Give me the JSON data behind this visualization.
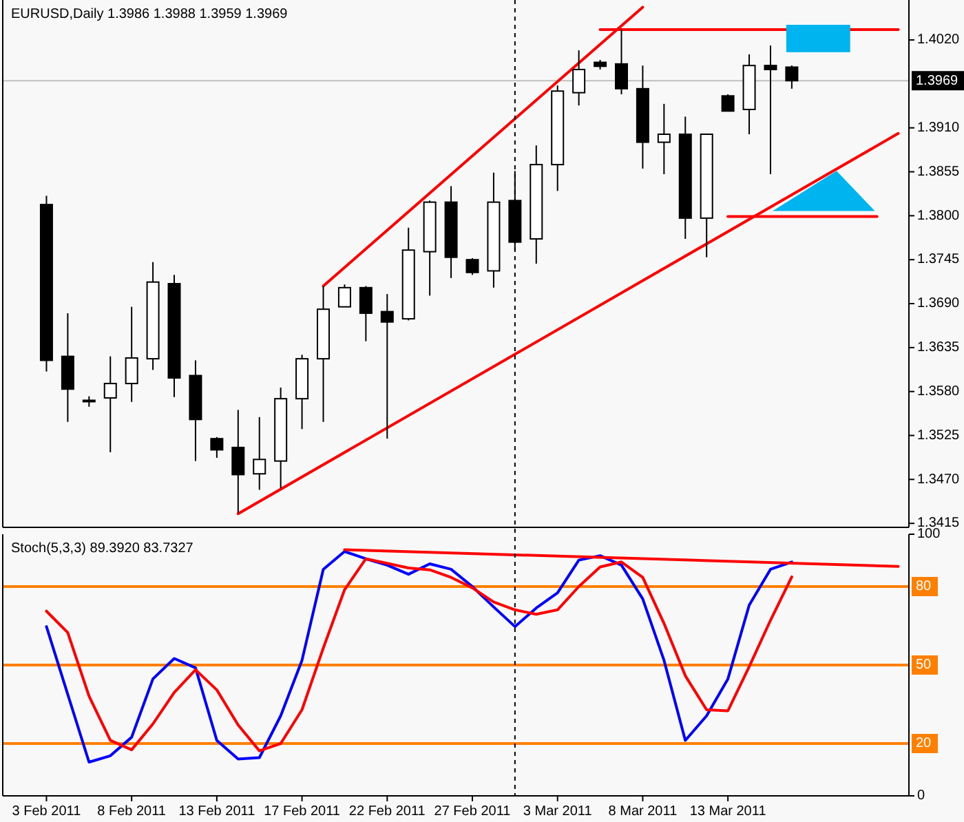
{
  "chart_data": [
    {
      "type": "candlestick",
      "title": "EURUSD,Daily  1.3986 1.3988 1.3959 1.3969",
      "tick_labels": "y",
      "categories": [
        null,
        null,
        null,
        null,
        null,
        null,
        null,
        null,
        null,
        null,
        null,
        null,
        null,
        null,
        null,
        null,
        null,
        null,
        null,
        null,
        null,
        null,
        null,
        null,
        null,
        null,
        null,
        null,
        null,
        null,
        null,
        null,
        null,
        null,
        null,
        null,
        null,
        null,
        null,
        null,
        null
      ],
      "ohlc": [
        [
          1.3814,
          1.3825,
          1.3605,
          1.3619
        ],
        [
          1.3624,
          1.3678,
          1.3542,
          1.3583
        ],
        [
          1.3569,
          1.3574,
          1.3561,
          1.3569
        ],
        [
          1.3572,
          1.3624,
          1.3504,
          1.359
        ],
        [
          1.359,
          1.3686,
          1.3567,
          1.3622
        ],
        [
          1.3621,
          1.3742,
          1.3607,
          1.3717
        ],
        [
          1.3715,
          1.3726,
          1.3573,
          1.3597
        ],
        [
          1.36,
          1.3619,
          1.3493,
          1.3545
        ],
        [
          1.3521,
          1.3523,
          1.3497,
          1.3507
        ],
        [
          1.351,
          1.3557,
          1.3428,
          1.3476
        ],
        [
          1.3477,
          1.3548,
          1.3457,
          1.3495
        ],
        [
          1.3493,
          1.3585,
          1.3459,
          1.3571
        ],
        [
          1.3571,
          1.3626,
          1.3533,
          1.3621
        ],
        [
          1.3621,
          1.3712,
          1.3542,
          1.3683
        ],
        [
          1.3686,
          1.3714,
          1.3686,
          1.371
        ],
        [
          1.371,
          1.3712,
          1.3643,
          1.3678
        ],
        [
          1.368,
          1.3702,
          1.3521,
          1.3667
        ],
        [
          1.3671,
          1.3785,
          1.3669,
          1.3757
        ],
        [
          1.3755,
          1.3819,
          1.37,
          1.3817
        ],
        [
          1.3817,
          1.3837,
          1.3722,
          1.3748
        ],
        [
          1.3745,
          1.3747,
          1.3726,
          1.3729
        ],
        [
          1.3731,
          1.3854,
          1.371,
          1.3817
        ],
        [
          1.3819,
          1.3856,
          1.3757,
          1.3767
        ],
        [
          1.3771,
          1.3888,
          1.374,
          1.3864
        ],
        [
          1.3864,
          1.3963,
          1.3831,
          1.3956
        ],
        [
          1.3954,
          1.4007,
          1.3938,
          1.3983
        ],
        [
          1.3992,
          1.3995,
          1.3983,
          1.3987
        ],
        [
          1.399,
          1.4033,
          1.3952,
          1.3959
        ],
        [
          1.3959,
          1.3988,
          1.3859,
          1.3892
        ],
        [
          1.3892,
          1.394,
          1.3852,
          1.3902
        ],
        [
          1.3902,
          1.3924,
          1.3771,
          1.3797
        ],
        [
          1.3797,
          1.3902,
          1.3748,
          1.3902
        ],
        [
          1.395,
          1.3952,
          1.3931,
          1.3931
        ],
        [
          1.3933,
          1.4002,
          1.3902,
          1.3988
        ],
        [
          1.3988,
          1.4013,
          1.3852,
          1.3983
        ],
        [
          1.3986,
          1.3988,
          1.3959,
          1.3969
        ],
        null,
        null,
        null,
        null,
        null
      ],
      "series": [
        {
          "type": "line",
          "color": "#ff0000",
          "values": [
            null,
            null,
            null,
            null,
            null,
            null,
            null,
            null,
            null,
            null,
            null,
            null,
            null,
            1.3712,
            null,
            null,
            null,
            null,
            null,
            null,
            null,
            null,
            null,
            null,
            null,
            null,
            null,
            null,
            1.4061,
            null,
            null,
            null,
            null,
            null,
            null,
            null,
            null,
            null,
            null,
            null,
            null
          ]
        },
        {
          "type": "line",
          "color": "#ff0000",
          "values": [
            null,
            null,
            null,
            null,
            null,
            null,
            null,
            null,
            null,
            1.3427,
            null,
            null,
            null,
            null,
            null,
            null,
            null,
            null,
            null,
            null,
            null,
            null,
            null,
            null,
            null,
            null,
            null,
            null,
            null,
            null,
            null,
            null,
            null,
            null,
            null,
            null,
            null,
            null,
            null,
            null,
            1.3903
          ]
        },
        {
          "type": "line",
          "color": "#ff0000",
          "values": [
            null,
            null,
            null,
            null,
            null,
            null,
            null,
            null,
            null,
            null,
            null,
            null,
            null,
            null,
            null,
            null,
            null,
            null,
            null,
            null,
            null,
            null,
            null,
            null,
            null,
            null,
            1.4033,
            null,
            null,
            null,
            null,
            null,
            null,
            null,
            null,
            null,
            null,
            null,
            null,
            null,
            1.4033
          ]
        },
        {
          "type": "line",
          "color": "#ff0000",
          "values": [
            null,
            null,
            null,
            null,
            null,
            null,
            null,
            null,
            null,
            null,
            null,
            null,
            null,
            null,
            null,
            null,
            null,
            null,
            null,
            null,
            null,
            null,
            null,
            null,
            null,
            null,
            null,
            null,
            null,
            null,
            null,
            null,
            1.3799,
            null,
            null,
            null,
            null,
            null,
            null,
            1.3799,
            null
          ]
        }
      ],
      "ylim": [
        1.341,
        1.407
      ],
      "yticks": [
        {
          "value": 1.3415,
          "label": "1.3415"
        },
        {
          "value": 1.347,
          "label": "1.3470"
        },
        {
          "value": 1.3525,
          "label": "1.3525"
        },
        {
          "value": 1.358,
          "label": "1.3580"
        },
        {
          "value": 1.3635,
          "label": "1.3635"
        },
        {
          "value": 1.369,
          "label": "1.3690"
        },
        {
          "value": 1.3745,
          "label": "1.3745"
        },
        {
          "value": 1.38,
          "label": "1.3800"
        },
        {
          "value": 1.3855,
          "label": "1.3855"
        },
        {
          "value": 1.391,
          "label": "1.3910"
        },
        {
          "value": 1.402,
          "label": "1.4020"
        }
      ],
      "ref_lines": [
        {
          "axis": "y",
          "value": 1.3969,
          "label": "1.3969",
          "color": "#c0c0c0"
        }
      ]
    },
    {
      "type": "line",
      "title": "Stoch(5,3,3) 89.3920 83.7327",
      "categories": [
        "3 Feb 2011",
        null,
        null,
        null,
        "8 Feb 2011",
        null,
        null,
        null,
        "13 Feb 2011",
        null,
        null,
        null,
        "17 Feb 2011",
        null,
        null,
        null,
        "22 Feb 2011",
        null,
        null,
        null,
        "27 Feb 2011",
        null,
        null,
        null,
        "3 Mar 2011",
        null,
        null,
        null,
        "8 Mar 2011",
        null,
        null,
        null,
        "13 Mar 2011",
        null,
        null,
        null,
        null,
        null,
        null,
        null,
        null
      ],
      "series": [
        {
          "color": "#0000ff",
          "values": [
            64.7,
            38.8,
            12.9,
            15.3,
            22.4,
            44.7,
            52.5,
            48.9,
            21.2,
            14.1,
            14.6,
            30.6,
            51.8,
            86.6,
            93.4,
            90.6,
            88.2,
            84.7,
            88.7,
            86.6,
            80,
            72.2,
            64.7,
            71.8,
            77.6,
            90.1,
            91.8,
            88.2,
            75.3,
            51.8,
            21.2,
            30.6,
            44.7,
            72.9,
            86.6,
            89.4,
            null,
            null,
            null,
            null,
            null
          ]
        },
        {
          "color": "#ff0000",
          "values": [
            70.6,
            62.4,
            38.1,
            21.2,
            17.6,
            27.5,
            39.5,
            48.2,
            40.5,
            27.1,
            17.2,
            20,
            32.9,
            56.5,
            78.8,
            90.6,
            88.9,
            87.1,
            86.4,
            83.5,
            79.5,
            74.1,
            71.1,
            69.4,
            71.1,
            80,
            87.5,
            89.4,
            83.5,
            65.9,
            45.9,
            32.9,
            32.5,
            49.4,
            67.1,
            83.7,
            null,
            null,
            null,
            null,
            null
          ]
        },
        {
          "color": "#ff0000",
          "values": [
            null,
            null,
            null,
            null,
            null,
            null,
            null,
            null,
            null,
            null,
            null,
            null,
            null,
            null,
            94.1,
            null,
            null,
            null,
            null,
            null,
            null,
            null,
            null,
            null,
            null,
            null,
            null,
            null,
            null,
            null,
            null,
            null,
            null,
            null,
            null,
            null,
            null,
            null,
            null,
            null,
            87.7
          ]
        }
      ],
      "ylim": [
        0,
        100
      ],
      "yticks": [
        0,
        100
      ],
      "ref_lines": [
        {
          "axis": "y",
          "value": 80,
          "label": "80",
          "color": "#ff8000"
        },
        {
          "axis": "y",
          "value": 50,
          "label": "50",
          "color": "#ff8000"
        },
        {
          "axis": "y",
          "value": 20,
          "label": "20",
          "color": "#ff8000"
        }
      ]
    }
  ]
}
